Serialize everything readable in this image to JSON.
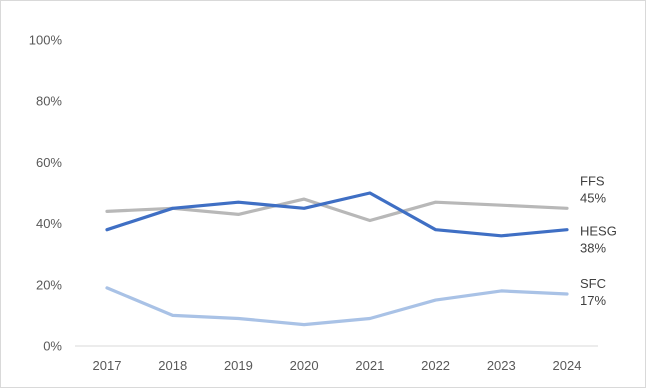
{
  "chart_data": {
    "type": "line",
    "title": "",
    "xlabel": "",
    "ylabel": "",
    "x": [
      "2017",
      "2018",
      "2019",
      "2020",
      "2021",
      "2022",
      "2023",
      "2024"
    ],
    "ylim": [
      0,
      100
    ],
    "y_ticks": [
      "0%",
      "20%",
      "40%",
      "60%",
      "80%",
      "100%"
    ],
    "grid": false,
    "legend": "none",
    "series": [
      {
        "name": "FFS",
        "end_value": "45%",
        "color": "#b8b8b8",
        "values": [
          44,
          45,
          43,
          48,
          41,
          47,
          46,
          45
        ]
      },
      {
        "name": "HESG",
        "end_value": "38%",
        "color": "#3f6fc4",
        "values": [
          38,
          45,
          47,
          45,
          50,
          38,
          36,
          38
        ]
      },
      {
        "name": "SFC",
        "end_value": "17%",
        "color": "#a9c2e6",
        "values": [
          19,
          10,
          9,
          7,
          9,
          15,
          18,
          17
        ]
      }
    ]
  }
}
